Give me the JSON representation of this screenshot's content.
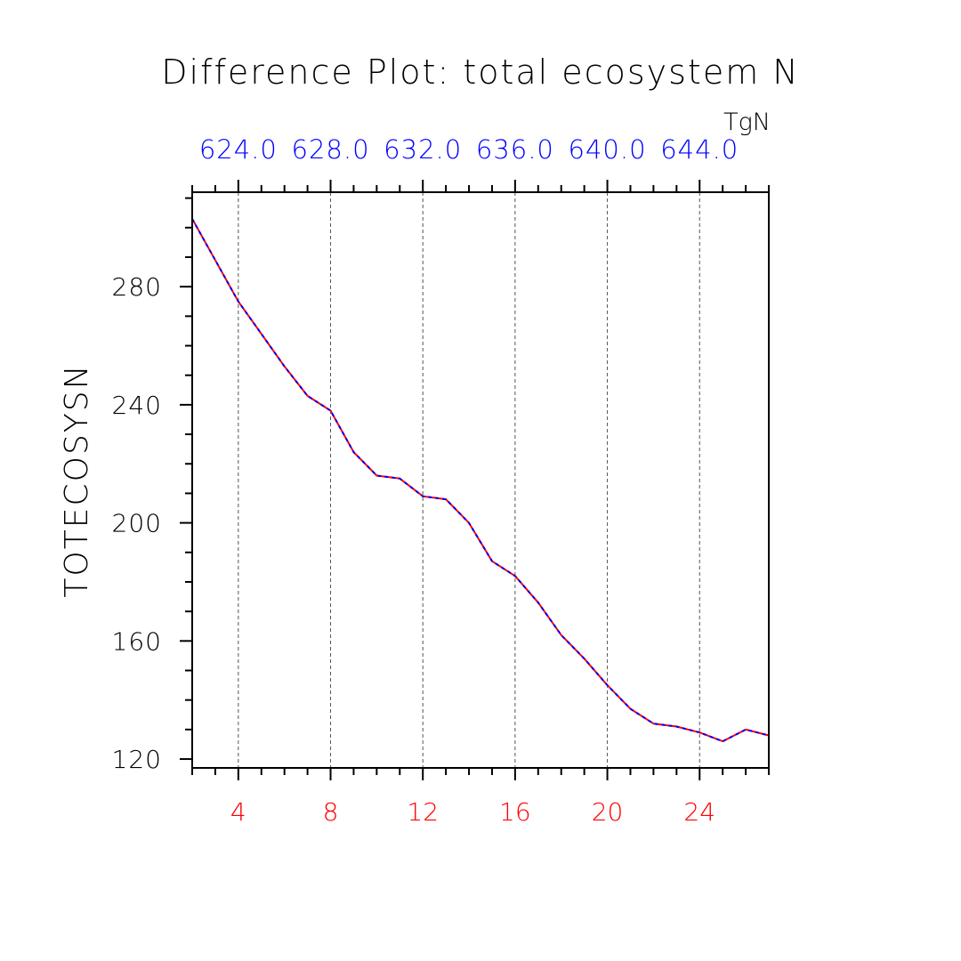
{
  "chart_data": {
    "type": "line",
    "title": "Difference Plot: total ecosystem N",
    "ylabel": "TOTECOSYSN",
    "top_axis_units": "TgN",
    "xlim": [
      2,
      27
    ],
    "ylim": [
      117,
      312
    ],
    "x_ticks": [
      4,
      8,
      12,
      16,
      20,
      24
    ],
    "x_tick_labels": [
      "4",
      "8",
      "12",
      "16",
      "20",
      "24"
    ],
    "y_ticks": [
      120,
      160,
      200,
      240,
      280
    ],
    "y_tick_labels": [
      "120",
      "160",
      "200",
      "240",
      "280"
    ],
    "top_tick_labels": [
      "624.0",
      "628.0",
      "632.0",
      "636.0",
      "640.0",
      "644.0"
    ],
    "vertical_grid": true,
    "x_tick_color": "#ff0000",
    "top_tick_color": "#0000ff",
    "series": [
      {
        "color": "#ff0000",
        "style": "solid",
        "x": [
          2,
          3,
          4,
          5,
          6,
          7,
          8,
          9,
          10,
          11,
          12,
          13,
          14,
          15,
          16,
          17,
          18,
          19,
          20,
          21,
          22,
          23,
          24,
          25,
          26,
          27
        ],
        "values": [
          303,
          289,
          275,
          264,
          253,
          243,
          238,
          224,
          216,
          215,
          209,
          208,
          200,
          187,
          182,
          173,
          162,
          154,
          145,
          137,
          132,
          131,
          129,
          126,
          130,
          128
        ]
      },
      {
        "color": "#0000ff",
        "style": "dashed",
        "x": [
          2,
          3,
          4,
          5,
          6,
          7,
          8,
          9,
          10,
          11,
          12,
          13,
          14,
          15,
          16,
          17,
          18,
          19,
          20,
          21,
          22,
          23,
          24,
          25,
          26,
          27
        ],
        "values": [
          303,
          289,
          275,
          264,
          253,
          243,
          238,
          224,
          216,
          215,
          209,
          208,
          200,
          187,
          182,
          173,
          162,
          154,
          145,
          137,
          132,
          131,
          129,
          126,
          130,
          128
        ]
      }
    ]
  }
}
